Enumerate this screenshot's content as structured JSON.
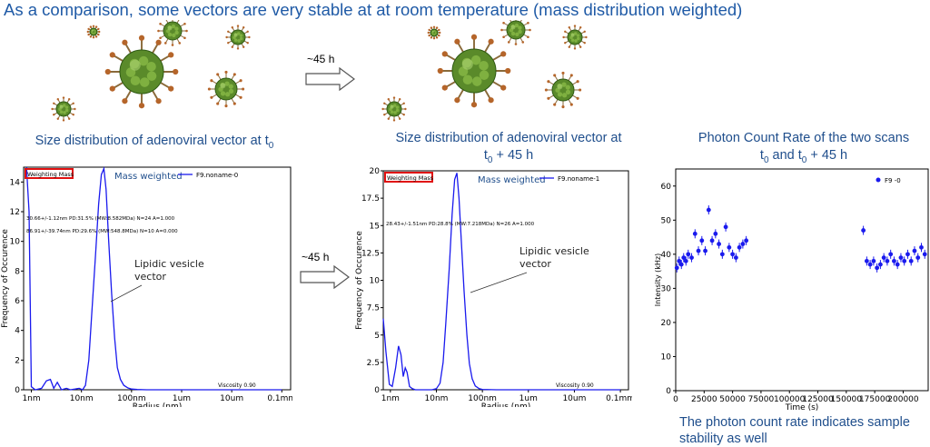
{
  "slide": {
    "title": "As a comparison, some vectors are very stable at at room temperature (mass distribution weighted)",
    "caption_left_main": "Size distribution of adenoviral vector at t",
    "caption_left_sub": "0",
    "caption_mid_line1": "Size distribution of adenoviral vector at",
    "caption_mid_line2_t": "t",
    "caption_mid_line2_sub": "0",
    "caption_mid_line2_rest": " + 45 h",
    "caption_right_line1": "Photon Count Rate of the two scans",
    "caption_right_line2_a": "t",
    "caption_right_line2_sub": "0",
    "caption_right_line2_b": " and t",
    "caption_right_line2_sub2": "0",
    "caption_right_line2_c": " + 45 h",
    "arrow_top_label": "~45 h",
    "arrow_mid_label": "~45 h",
    "bottom_note": "The photon count rate indicates sample stability as well"
  },
  "colors": {
    "title": "#1f5aa6",
    "caption": "#1f4e8c",
    "series": "#1a1aee",
    "highlight_box": "#e01010",
    "virus_green": "#5a8a2a",
    "spike": "#b5652a"
  },
  "chart_data": [
    {
      "type": "line",
      "log_x": true,
      "x_tick_labels": [
        "1nm",
        "10nm",
        "100nm",
        "1um",
        "10um",
        "0.1mm"
      ],
      "xlabel": "Radius (nm)",
      "ylabel": "Frequency of Occurence",
      "ylim": [
        0,
        15
      ],
      "y_ticks": [
        0,
        2,
        4,
        6,
        8,
        10,
        12,
        14
      ],
      "weighting_label": "Weighting  Mass",
      "mode_label": "Mass weighted",
      "legend": "F9.noname-0",
      "stat_line1": "30.66+/-1.12nm PD:31.5% (MW:8.582MDa) N=24 A=1.000",
      "stat_line2": "86.91+/-39.74nm PD:29.6% (MW:548.8MDa) N=10 A=0.000",
      "annotation": "Lipidic vesicle vector",
      "viscosity": "Viscosity 0.90",
      "series": [
        {
          "name": "F9.noname-0",
          "x": [
            0.8,
            0.9,
            1.0,
            1.2,
            1.6,
            2.0,
            2.4,
            2.8,
            3.3,
            4.0,
            5.0,
            6.0,
            7.5,
            9.0,
            10.5,
            12,
            14,
            16,
            19,
            22,
            25,
            28,
            31,
            35,
            40,
            46,
            52,
            60,
            70,
            85,
            100,
            130,
            200,
            400,
            1000,
            100000
          ],
          "y": [
            15,
            12,
            0.2,
            0,
            0.1,
            0.6,
            0.7,
            0.1,
            0.5,
            0.0,
            0.1,
            0.0,
            0.05,
            0.1,
            0.0,
            0.3,
            2.0,
            5.0,
            9.0,
            12.5,
            14.5,
            14.9,
            13.5,
            10.0,
            6.5,
            3.5,
            1.5,
            0.7,
            0.3,
            0.12,
            0.05,
            0.02,
            0,
            0,
            0,
            0
          ]
        }
      ]
    },
    {
      "type": "line",
      "log_x": true,
      "x_tick_labels": [
        "1nm",
        "10nm",
        "100nm",
        "1um",
        "10um",
        "0.1mm"
      ],
      "xlabel": "Radius (nm)",
      "ylabel": "Frequency of Occurence",
      "ylim": [
        0,
        20
      ],
      "y_ticks": [
        0,
        2.5,
        5.0,
        7.5,
        10.0,
        12.5,
        15.0,
        17.5,
        20.0
      ],
      "weighting_label": "Weighting  Mass",
      "mode_label": "Mass weighted",
      "legend": "F9.noname-1",
      "stat_line1": "28.43+/-1.51nm PD:28.8% (MW:7.218MDa) N=26 A=1.000",
      "annotation": "Lipidic vesicle vector",
      "viscosity": "Viscosity 0.90",
      "series": [
        {
          "name": "F9.noname-1",
          "x": [
            0.7,
            0.8,
            0.95,
            1.1,
            1.3,
            1.5,
            1.7,
            1.9,
            2.1,
            2.3,
            2.6,
            3.0,
            3.5,
            4.5,
            6,
            8,
            10,
            12,
            14,
            16,
            19,
            22,
            25,
            28,
            31,
            35,
            40,
            46,
            52,
            60,
            70,
            85,
            100,
            200,
            1000,
            100000
          ],
          "y": [
            6.5,
            3.5,
            0.5,
            0.3,
            2.0,
            4.0,
            3.2,
            1.2,
            2.0,
            1.6,
            0.3,
            0.1,
            0,
            0,
            0,
            0,
            0.1,
            0.6,
            2.5,
            6.0,
            11.0,
            16.0,
            19.2,
            19.8,
            17.5,
            13.5,
            9.0,
            5.0,
            2.4,
            1.0,
            0.35,
            0.1,
            0.03,
            0,
            0,
            0
          ]
        }
      ]
    },
    {
      "type": "scatter",
      "xlabel": "Time (s)",
      "ylabel": "Intensity (kHz)",
      "xlim": [
        0,
        222000
      ],
      "ylim": [
        0,
        65
      ],
      "x_ticks": [
        0,
        25000,
        50000,
        75000,
        100000,
        125000,
        150000,
        175000,
        200000
      ],
      "y_ticks": [
        0,
        10,
        20,
        30,
        40,
        50,
        60
      ],
      "legend": "F9 -0",
      "series": [
        {
          "name": "F9 -0",
          "x": [
            1000,
            3000,
            5000,
            7000,
            9000,
            11000,
            14000,
            17000,
            20000,
            23000,
            26000,
            29000,
            32000,
            35000,
            38000,
            41000,
            44000,
            47000,
            50000,
            53000,
            56000,
            59000,
            62000,
            165000,
            168000,
            171000,
            174000,
            177000,
            180000,
            183000,
            186000,
            189000,
            192000,
            195000,
            198000,
            201000,
            204000,
            207000,
            210000,
            213000,
            216000,
            219000
          ],
          "y": [
            36,
            38,
            37,
            39,
            38,
            40,
            39,
            46,
            41,
            44,
            41,
            53,
            44,
            46,
            43,
            40,
            48,
            42,
            40,
            39,
            42,
            43,
            44,
            47,
            38,
            37,
            38,
            36,
            37,
            39,
            38,
            40,
            38,
            37,
            39,
            38,
            40,
            38,
            41,
            39,
            42,
            40
          ]
        }
      ]
    }
  ]
}
